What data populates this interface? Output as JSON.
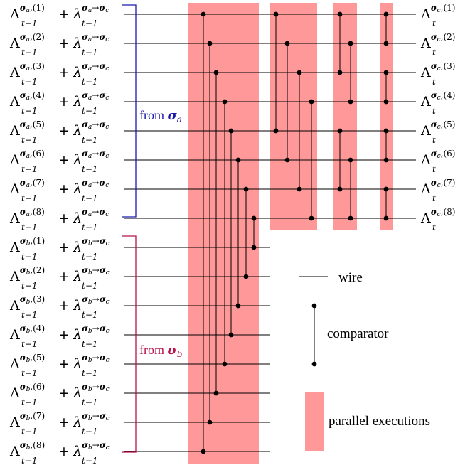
{
  "inputs_a": [
    {
      "idx": "1",
      "src": "a",
      "dst": "c"
    },
    {
      "idx": "2",
      "src": "a",
      "dst": "c"
    },
    {
      "idx": "3",
      "src": "a",
      "dst": "c"
    },
    {
      "idx": "4",
      "src": "a",
      "dst": "c"
    },
    {
      "idx": "5",
      "src": "a",
      "dst": "c"
    },
    {
      "idx": "6",
      "src": "a",
      "dst": "c"
    },
    {
      "idx": "7",
      "src": "a",
      "dst": "c"
    },
    {
      "idx": "8",
      "src": "a",
      "dst": "c"
    }
  ],
  "inputs_b": [
    {
      "idx": "1",
      "src": "b",
      "dst": "c"
    },
    {
      "idx": "2",
      "src": "b",
      "dst": "c"
    },
    {
      "idx": "3",
      "src": "b",
      "dst": "c"
    },
    {
      "idx": "4",
      "src": "b",
      "dst": "c"
    },
    {
      "idx": "5",
      "src": "b",
      "dst": "c"
    },
    {
      "idx": "6",
      "src": "b",
      "dst": "c"
    },
    {
      "idx": "7",
      "src": "b",
      "dst": "c"
    },
    {
      "idx": "8",
      "src": "b",
      "dst": "c"
    }
  ],
  "outputs": [
    {
      "idx": "1",
      "dst": "c"
    },
    {
      "idx": "2",
      "dst": "c"
    },
    {
      "idx": "3",
      "dst": "c"
    },
    {
      "idx": "4",
      "dst": "c"
    },
    {
      "idx": "5",
      "dst": "c"
    },
    {
      "idx": "6",
      "dst": "c"
    },
    {
      "idx": "7",
      "dst": "c"
    },
    {
      "idx": "8",
      "dst": "c"
    }
  ],
  "symbols": {
    "Lambda": "Λ",
    "lambda": "λ",
    "sigma": "σ",
    "arrow": "→",
    "plus": "+",
    "t_minus_1": "t−1",
    "t": "t"
  },
  "brackets": {
    "a": {
      "label_prefix": "from ",
      "sym": "σ",
      "sub": "a",
      "color": "#1a1aaa"
    },
    "b": {
      "label_prefix": "from ",
      "sym": "σ",
      "sub": "b",
      "color": "#b8134a"
    }
  },
  "legend": {
    "wire": "wire",
    "comparator": "comparator",
    "parallel": "parallel executions"
  },
  "colors": {
    "stage_fill": "#ff9999",
    "wire": "#000000"
  },
  "network": {
    "stages": [
      [
        [
          0,
          15
        ],
        [
          1,
          14
        ],
        [
          2,
          13
        ],
        [
          3,
          12
        ],
        [
          4,
          11
        ],
        [
          5,
          10
        ],
        [
          6,
          9
        ],
        [
          7,
          8
        ]
      ],
      [
        [
          0,
          4
        ],
        [
          1,
          5
        ],
        [
          2,
          6
        ],
        [
          3,
          7
        ]
      ],
      [
        [
          0,
          2
        ],
        [
          1,
          3
        ],
        [
          4,
          6
        ],
        [
          5,
          7
        ]
      ],
      [
        [
          0,
          1
        ],
        [
          2,
          3
        ],
        [
          4,
          5
        ],
        [
          6,
          7
        ]
      ]
    ]
  }
}
